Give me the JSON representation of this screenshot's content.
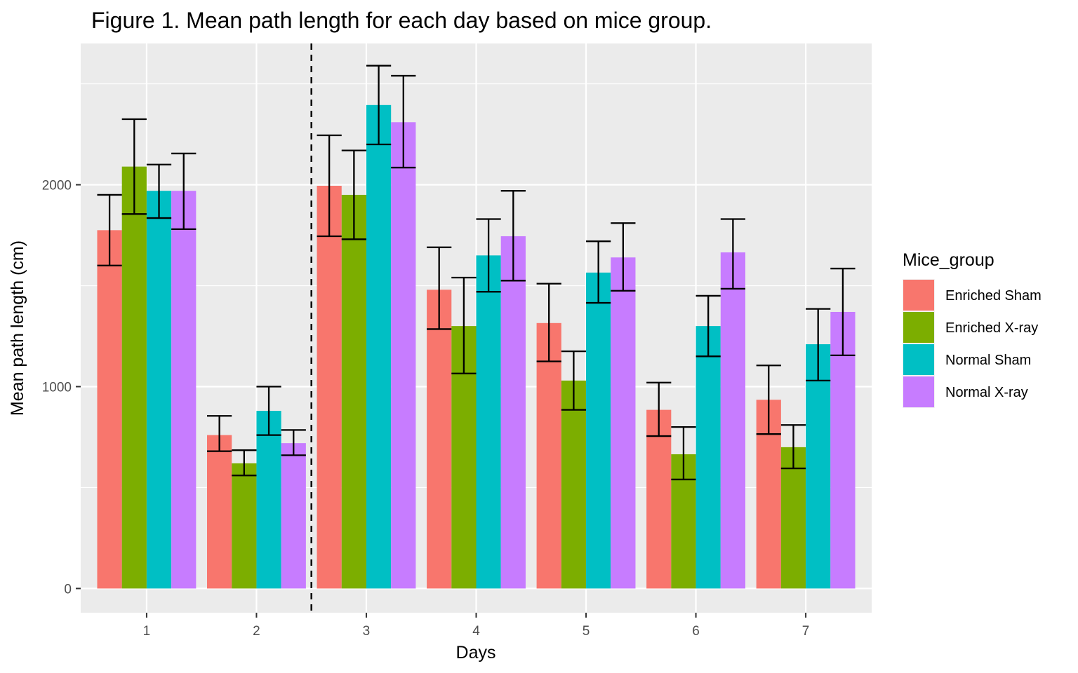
{
  "chart_data": {
    "type": "bar",
    "title": "Figure 1. Mean path length for each day based on mice group.",
    "xlabel": "Days",
    "ylabel": "Mean path length (cm)",
    "categories": [
      "1",
      "2",
      "3",
      "4",
      "5",
      "6",
      "7"
    ],
    "yticks": [
      "0",
      "1000",
      "2000"
    ],
    "ylim": [
      -120,
      2700
    ],
    "legend": {
      "title": "Mice_group",
      "position": "right"
    },
    "grid": true,
    "separator_after_category": "2",
    "series": [
      {
        "name": "Enriched Sham",
        "color": "#f8766d",
        "values": [
          1775,
          760,
          1995,
          1480,
          1315,
          885,
          935
        ],
        "err_low": [
          1600,
          680,
          1745,
          1285,
          1125,
          755,
          765
        ],
        "err_high": [
          1950,
          855,
          2245,
          1690,
          1510,
          1020,
          1105
        ]
      },
      {
        "name": "Enriched X-ray",
        "color": "#7cae00",
        "values": [
          2090,
          620,
          1950,
          1300,
          1030,
          665,
          700
        ],
        "err_low": [
          1855,
          560,
          1730,
          1065,
          885,
          540,
          595
        ],
        "err_high": [
          2325,
          685,
          2170,
          1540,
          1175,
          800,
          810
        ]
      },
      {
        "name": "Normal Sham",
        "color": "#00bfc4",
        "values": [
          1970,
          880,
          2395,
          1650,
          1565,
          1300,
          1210
        ],
        "err_low": [
          1835,
          760,
          2200,
          1470,
          1415,
          1150,
          1030
        ],
        "err_high": [
          2100,
          1000,
          2590,
          1830,
          1720,
          1450,
          1385
        ]
      },
      {
        "name": "Normal X-ray",
        "color": "#c77cff",
        "values": [
          1970,
          720,
          2310,
          1745,
          1640,
          1665,
          1370
        ],
        "err_low": [
          1780,
          660,
          2085,
          1525,
          1475,
          1485,
          1155
        ],
        "err_high": [
          2155,
          785,
          2540,
          1970,
          1810,
          1830,
          1585
        ]
      }
    ]
  }
}
